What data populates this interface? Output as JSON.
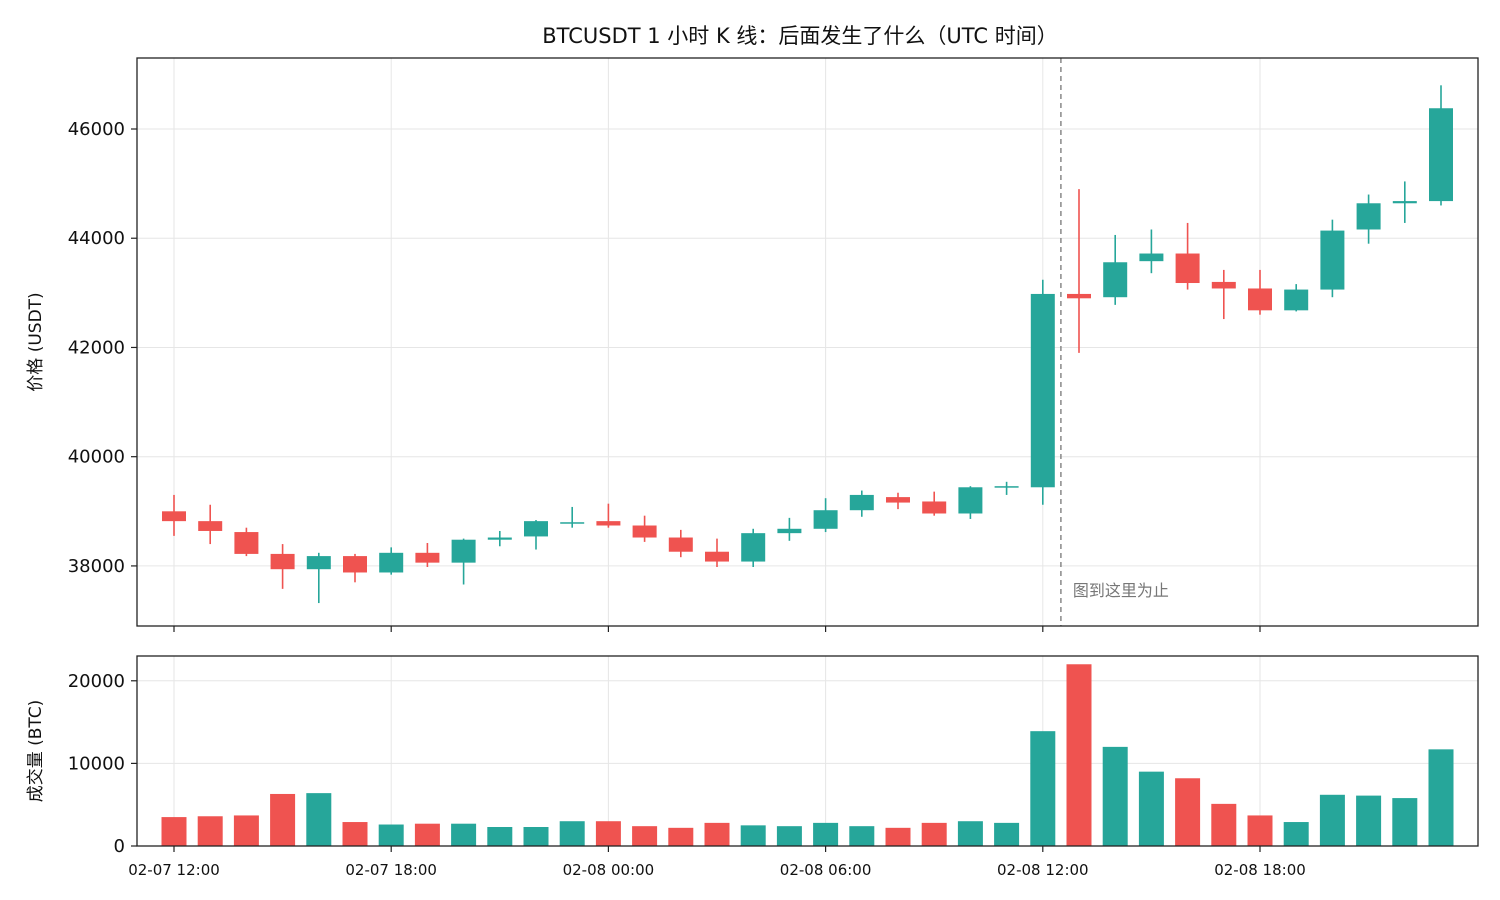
{
  "chart_data": {
    "type": "candlestick",
    "title": "BTCUSDT 1 小时 K 线：后面发生了什么（UTC 时间）",
    "price_axis": {
      "label": "价格 (USDT)",
      "ylim": [
        36900,
        47300
      ],
      "ticks": [
        38000,
        40000,
        42000,
        44000,
        46000
      ]
    },
    "volume_axis": {
      "label": "成交量 (BTC)",
      "ylim": [
        0,
        23000
      ],
      "ticks": [
        0,
        10000,
        20000
      ]
    },
    "x_ticks": [
      "02-07 12:00",
      "02-07 18:00",
      "02-08 00:00",
      "02-08 06:00",
      "02-08 12:00",
      "02-08 18:00"
    ],
    "cutoff": {
      "after_index": 24,
      "label": "图到这里为止"
    },
    "colors": {
      "up": "#26a69a",
      "down": "#ef5350",
      "cutoff_line": "#888888"
    },
    "grid": true,
    "candles": [
      {
        "time": "02-07 12:00",
        "open": 39000,
        "high": 39300,
        "low": 38550,
        "close": 38820,
        "volume": 3500
      },
      {
        "time": "02-07 13:00",
        "open": 38820,
        "high": 39120,
        "low": 38400,
        "close": 38640,
        "volume": 3600
      },
      {
        "time": "02-07 14:00",
        "open": 38620,
        "high": 38700,
        "low": 38180,
        "close": 38220,
        "volume": 3700
      },
      {
        "time": "02-07 15:00",
        "open": 38220,
        "high": 38400,
        "low": 37580,
        "close": 37940,
        "volume": 6300
      },
      {
        "time": "02-07 16:00",
        "open": 37940,
        "high": 38240,
        "low": 37320,
        "close": 38180,
        "volume": 6400
      },
      {
        "time": "02-07 17:00",
        "open": 38180,
        "high": 38220,
        "low": 37700,
        "close": 37880,
        "volume": 2900
      },
      {
        "time": "02-07 18:00",
        "open": 37880,
        "high": 38340,
        "low": 37840,
        "close": 38240,
        "volume": 2600
      },
      {
        "time": "02-07 19:00",
        "open": 38240,
        "high": 38420,
        "low": 37980,
        "close": 38060,
        "volume": 2700
      },
      {
        "time": "02-07 20:00",
        "open": 38060,
        "high": 38500,
        "low": 37660,
        "close": 38480,
        "volume": 2700
      },
      {
        "time": "02-07 21:00",
        "open": 38480,
        "high": 38640,
        "low": 38360,
        "close": 38520,
        "volume": 2300
      },
      {
        "time": "02-07 22:00",
        "open": 38540,
        "high": 38840,
        "low": 38300,
        "close": 38820,
        "volume": 2300
      },
      {
        "time": "02-07 23:00",
        "open": 38800,
        "high": 39080,
        "low": 38700,
        "close": 38800,
        "volume": 3000
      },
      {
        "time": "02-08 00:00",
        "open": 38820,
        "high": 39140,
        "low": 38700,
        "close": 38740,
        "volume": 3000
      },
      {
        "time": "02-08 01:00",
        "open": 38740,
        "high": 38920,
        "low": 38440,
        "close": 38520,
        "volume": 2400
      },
      {
        "time": "02-08 02:00",
        "open": 38520,
        "high": 38660,
        "low": 38160,
        "close": 38260,
        "volume": 2200
      },
      {
        "time": "02-08 03:00",
        "open": 38260,
        "high": 38500,
        "low": 37980,
        "close": 38080,
        "volume": 2800
      },
      {
        "time": "02-08 04:00",
        "open": 38080,
        "high": 38680,
        "low": 37980,
        "close": 38600,
        "volume": 2500
      },
      {
        "time": "02-08 05:00",
        "open": 38600,
        "high": 38880,
        "low": 38460,
        "close": 38680,
        "volume": 2400
      },
      {
        "time": "02-08 06:00",
        "open": 38680,
        "high": 39240,
        "low": 38620,
        "close": 39020,
        "volume": 2800
      },
      {
        "time": "02-08 07:00",
        "open": 39020,
        "high": 39380,
        "low": 38900,
        "close": 39300,
        "volume": 2400
      },
      {
        "time": "02-08 08:00",
        "open": 39260,
        "high": 39340,
        "low": 39040,
        "close": 39160,
        "volume": 2200
      },
      {
        "time": "02-08 09:00",
        "open": 39180,
        "high": 39360,
        "low": 38920,
        "close": 38960,
        "volume": 2800
      },
      {
        "time": "02-08 10:00",
        "open": 38960,
        "high": 39460,
        "low": 38860,
        "close": 39440,
        "volume": 3000
      },
      {
        "time": "02-08 11:00",
        "open": 39440,
        "high": 39540,
        "low": 39300,
        "close": 39460,
        "volume": 2800
      },
      {
        "time": "02-08 12:00",
        "open": 39440,
        "high": 43240,
        "low": 39120,
        "close": 42980,
        "volume": 13900
      },
      {
        "time": "02-08 13:00",
        "open": 42980,
        "high": 44900,
        "low": 41900,
        "close": 42900,
        "volume": 22000
      },
      {
        "time": "02-08 14:00",
        "open": 42920,
        "high": 44060,
        "low": 42780,
        "close": 43560,
        "volume": 12000
      },
      {
        "time": "02-08 15:00",
        "open": 43580,
        "high": 44160,
        "low": 43360,
        "close": 43720,
        "volume": 9000
      },
      {
        "time": "02-08 16:00",
        "open": 43720,
        "high": 44280,
        "low": 43060,
        "close": 43180,
        "volume": 8200
      },
      {
        "time": "02-08 17:00",
        "open": 43200,
        "high": 43420,
        "low": 42520,
        "close": 43080,
        "volume": 5100
      },
      {
        "time": "02-08 18:00",
        "open": 43080,
        "high": 43420,
        "low": 42600,
        "close": 42680,
        "volume": 3700
      },
      {
        "time": "02-08 19:00",
        "open": 42680,
        "high": 43160,
        "low": 42660,
        "close": 43060,
        "volume": 2900
      },
      {
        "time": "02-08 20:00",
        "open": 43060,
        "high": 44340,
        "low": 42920,
        "close": 44140,
        "volume": 6200
      },
      {
        "time": "02-08 21:00",
        "open": 44160,
        "high": 44800,
        "low": 43900,
        "close": 44640,
        "volume": 6100
      },
      {
        "time": "02-08 22:00",
        "open": 44640,
        "high": 45040,
        "low": 44280,
        "close": 44680,
        "volume": 5800
      },
      {
        "time": "02-08 23:00",
        "open": 44680,
        "high": 46800,
        "low": 44600,
        "close": 46380,
        "volume": 11700
      }
    ]
  }
}
